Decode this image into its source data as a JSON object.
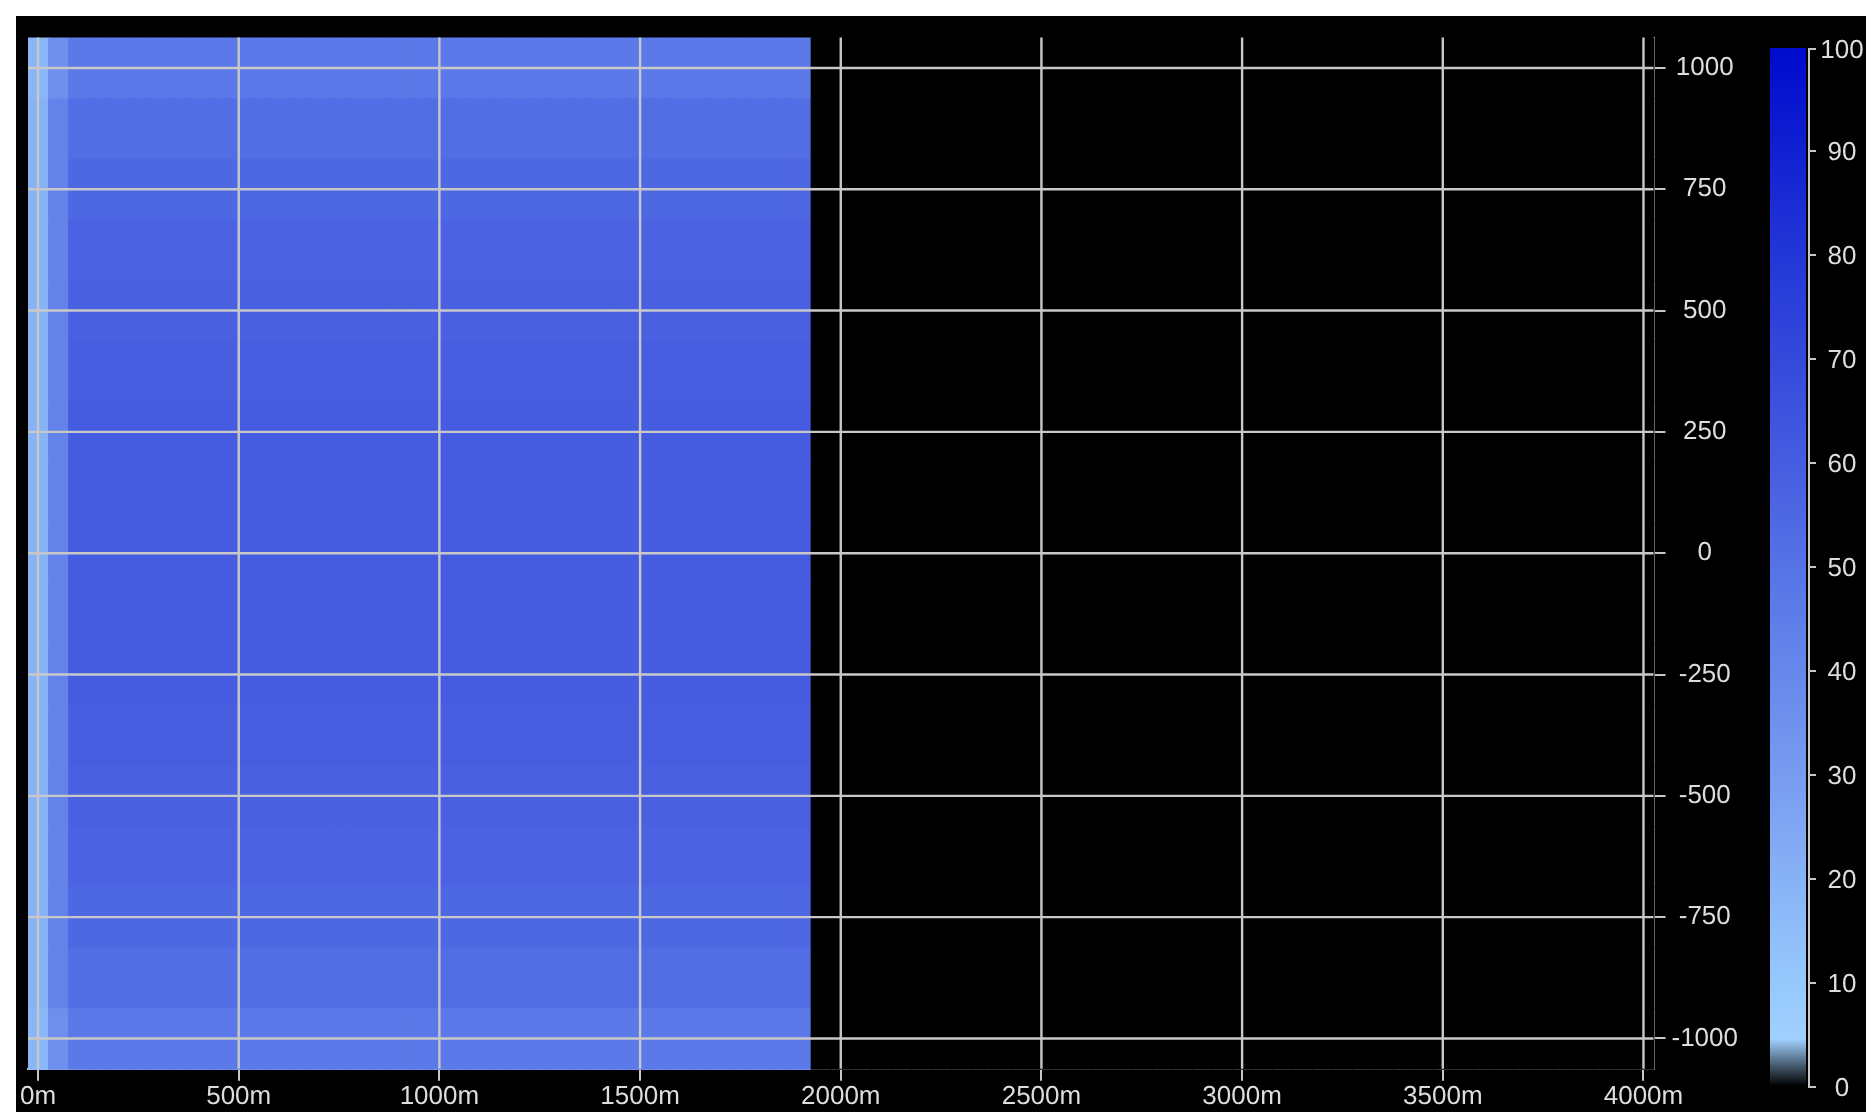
{
  "chart_data": {
    "type": "heatmap",
    "categories": [
      "0m",
      null,
      null,
      null,
      null,
      null,
      null,
      null,
      null,
      null,
      "500m",
      null,
      null,
      null,
      null,
      null,
      null,
      null,
      null,
      null,
      "1000m",
      null,
      null,
      null,
      null,
      null,
      null,
      null,
      null,
      null,
      "1500m",
      null,
      null,
      null,
      null,
      null,
      null,
      null,
      null,
      null,
      "2000m",
      null,
      null,
      null,
      null,
      null,
      null,
      null,
      null,
      null,
      "2500m",
      null,
      null,
      null,
      null,
      null,
      null,
      null,
      null,
      null,
      "3000m",
      null,
      null,
      null,
      null,
      null,
      null,
      null,
      null,
      null,
      "3500m",
      null,
      null,
      null,
      null,
      null,
      null,
      null,
      null,
      null,
      "4000m"
    ],
    "y_categories": [
      "1000",
      null,
      "750",
      null,
      "500",
      null,
      "250",
      null,
      "0",
      null,
      "-250",
      null,
      "-500",
      null,
      "-750",
      null,
      "-1000"
    ],
    "cells": [
      [
        18,
        36,
        47,
        47,
        47,
        47,
        47,
        47,
        47,
        47,
        47,
        47,
        47,
        47,
        47,
        47,
        47,
        47,
        47,
        47,
        47,
        47,
        47,
        47,
        47,
        47,
        47,
        47,
        47,
        47,
        47,
        47,
        47,
        47,
        47,
        47,
        47,
        47,
        47,
        0,
        0,
        0,
        0,
        0,
        0,
        0,
        0,
        0,
        0,
        0,
        0,
        0,
        0,
        0,
        0,
        0,
        0,
        0,
        0,
        0,
        0,
        0,
        0,
        0,
        0,
        0,
        0,
        0,
        0,
        0,
        0,
        0,
        0,
        0,
        0,
        0,
        0,
        0,
        0,
        0,
        0
      ],
      [
        20,
        42,
        52,
        52,
        52,
        52,
        52,
        52,
        52,
        52,
        52,
        52,
        52,
        52,
        52,
        52,
        52,
        52,
        52,
        52,
        52,
        52,
        52,
        52,
        52,
        52,
        52,
        52,
        52,
        52,
        52,
        52,
        52,
        52,
        52,
        52,
        52,
        52,
        52,
        0,
        0,
        0,
        0,
        0,
        0,
        0,
        0,
        0,
        0,
        0,
        0,
        0,
        0,
        0,
        0,
        0,
        0,
        0,
        0,
        0,
        0,
        0,
        0,
        0,
        0,
        0,
        0,
        0,
        0,
        0,
        0,
        0,
        0,
        0,
        0,
        0,
        0,
        0,
        0,
        0,
        0
      ],
      [
        20,
        42,
        55,
        55,
        55,
        55,
        55,
        55,
        55,
        55,
        55,
        55,
        55,
        55,
        55,
        55,
        55,
        55,
        55,
        55,
        55,
        55,
        55,
        55,
        55,
        55,
        55,
        55,
        55,
        55,
        55,
        55,
        55,
        55,
        55,
        55,
        55,
        55,
        55,
        0,
        0,
        0,
        0,
        0,
        0,
        0,
        0,
        0,
        0,
        0,
        0,
        0,
        0,
        0,
        0,
        0,
        0,
        0,
        0,
        0,
        0,
        0,
        0,
        0,
        0,
        0,
        0,
        0,
        0,
        0,
        0,
        0,
        0,
        0,
        0,
        0,
        0,
        0,
        0,
        0,
        0
      ],
      [
        20,
        42,
        57,
        57,
        57,
        57,
        57,
        57,
        57,
        57,
        57,
        57,
        57,
        57,
        57,
        57,
        57,
        57,
        57,
        57,
        57,
        57,
        57,
        57,
        57,
        57,
        57,
        57,
        57,
        57,
        57,
        57,
        57,
        57,
        57,
        57,
        57,
        57,
        57,
        0,
        0,
        0,
        0,
        0,
        0,
        0,
        0,
        0,
        0,
        0,
        0,
        0,
        0,
        0,
        0,
        0,
        0,
        0,
        0,
        0,
        0,
        0,
        0,
        0,
        0,
        0,
        0,
        0,
        0,
        0,
        0,
        0,
        0,
        0,
        0,
        0,
        0,
        0,
        0,
        0,
        0
      ],
      [
        20,
        42,
        58,
        58,
        58,
        58,
        58,
        58,
        58,
        58,
        58,
        58,
        58,
        58,
        58,
        58,
        58,
        58,
        58,
        58,
        58,
        58,
        58,
        58,
        58,
        58,
        58,
        58,
        58,
        58,
        58,
        58,
        58,
        58,
        58,
        58,
        58,
        58,
        58,
        0,
        0,
        0,
        0,
        0,
        0,
        0,
        0,
        0,
        0,
        0,
        0,
        0,
        0,
        0,
        0,
        0,
        0,
        0,
        0,
        0,
        0,
        0,
        0,
        0,
        0,
        0,
        0,
        0,
        0,
        0,
        0,
        0,
        0,
        0,
        0,
        0,
        0,
        0,
        0,
        0,
        0
      ],
      [
        20,
        42,
        59,
        59,
        59,
        59,
        59,
        59,
        59,
        59,
        59,
        59,
        59,
        59,
        59,
        59,
        59,
        59,
        59,
        59,
        59,
        59,
        59,
        59,
        59,
        59,
        59,
        59,
        59,
        59,
        59,
        59,
        59,
        59,
        59,
        59,
        59,
        59,
        59,
        0,
        0,
        0,
        0,
        0,
        0,
        0,
        0,
        0,
        0,
        0,
        0,
        0,
        0,
        0,
        0,
        0,
        0,
        0,
        0,
        0,
        0,
        0,
        0,
        0,
        0,
        0,
        0,
        0,
        0,
        0,
        0,
        0,
        0,
        0,
        0,
        0,
        0,
        0,
        0,
        0,
        0
      ],
      [
        20,
        42,
        60,
        60,
        60,
        60,
        60,
        60,
        60,
        60,
        60,
        60,
        60,
        60,
        60,
        60,
        60,
        60,
        60,
        60,
        60,
        60,
        60,
        60,
        60,
        60,
        60,
        60,
        60,
        60,
        60,
        60,
        60,
        60,
        60,
        60,
        60,
        60,
        60,
        0,
        0,
        0,
        0,
        0,
        0,
        0,
        0,
        0,
        0,
        0,
        0,
        0,
        0,
        0,
        0,
        0,
        0,
        0,
        0,
        0,
        0,
        0,
        0,
        0,
        0,
        0,
        0,
        0,
        0,
        0,
        0,
        0,
        0,
        0,
        0,
        0,
        0,
        0,
        0,
        0,
        0
      ],
      [
        20,
        42,
        60,
        60,
        60,
        60,
        60,
        60,
        60,
        60,
        60,
        60,
        60,
        60,
        60,
        60,
        60,
        60,
        60,
        60,
        60,
        60,
        60,
        60,
        60,
        60,
        60,
        60,
        60,
        60,
        60,
        60,
        60,
        60,
        60,
        60,
        60,
        60,
        60,
        0,
        0,
        0,
        0,
        0,
        0,
        0,
        0,
        0,
        0,
        0,
        0,
        0,
        0,
        0,
        0,
        0,
        0,
        0,
        0,
        0,
        0,
        0,
        0,
        0,
        0,
        0,
        0,
        0,
        0,
        0,
        0,
        0,
        0,
        0,
        0,
        0,
        0,
        0,
        0,
        0,
        0
      ],
      [
        20,
        42,
        60,
        60,
        60,
        60,
        60,
        60,
        60,
        60,
        60,
        60,
        60,
        60,
        60,
        60,
        60,
        60,
        60,
        60,
        60,
        60,
        60,
        60,
        60,
        60,
        60,
        60,
        60,
        60,
        60,
        60,
        60,
        60,
        60,
        60,
        60,
        60,
        60,
        0,
        0,
        0,
        0,
        0,
        0,
        0,
        0,
        0,
        0,
        0,
        0,
        0,
        0,
        0,
        0,
        0,
        0,
        0,
        0,
        0,
        0,
        0,
        0,
        0,
        0,
        0,
        0,
        0,
        0,
        0,
        0,
        0,
        0,
        0,
        0,
        0,
        0,
        0,
        0,
        0,
        0
      ],
      [
        20,
        42,
        60,
        60,
        60,
        60,
        60,
        60,
        60,
        60,
        60,
        60,
        60,
        60,
        60,
        60,
        60,
        60,
        60,
        60,
        60,
        60,
        60,
        60,
        60,
        60,
        60,
        60,
        60,
        60,
        60,
        60,
        60,
        60,
        60,
        60,
        60,
        60,
        60,
        0,
        0,
        0,
        0,
        0,
        0,
        0,
        0,
        0,
        0,
        0,
        0,
        0,
        0,
        0,
        0,
        0,
        0,
        0,
        0,
        0,
        0,
        0,
        0,
        0,
        0,
        0,
        0,
        0,
        0,
        0,
        0,
        0,
        0,
        0,
        0,
        0,
        0,
        0,
        0,
        0,
        0
      ],
      [
        20,
        42,
        60,
        60,
        60,
        60,
        60,
        60,
        60,
        60,
        60,
        60,
        60,
        60,
        60,
        60,
        60,
        60,
        60,
        60,
        60,
        60,
        60,
        60,
        60,
        60,
        60,
        60,
        60,
        60,
        60,
        60,
        60,
        60,
        60,
        60,
        60,
        60,
        60,
        0,
        0,
        0,
        0,
        0,
        0,
        0,
        0,
        0,
        0,
        0,
        0,
        0,
        0,
        0,
        0,
        0,
        0,
        0,
        0,
        0,
        0,
        0,
        0,
        0,
        0,
        0,
        0,
        0,
        0,
        0,
        0,
        0,
        0,
        0,
        0,
        0,
        0,
        0,
        0,
        0,
        0
      ],
      [
        20,
        42,
        59,
        59,
        59,
        59,
        59,
        59,
        59,
        59,
        59,
        59,
        59,
        59,
        59,
        59,
        59,
        59,
        59,
        59,
        59,
        59,
        59,
        59,
        59,
        59,
        59,
        59,
        59,
        59,
        59,
        59,
        59,
        59,
        59,
        59,
        59,
        59,
        59,
        0,
        0,
        0,
        0,
        0,
        0,
        0,
        0,
        0,
        0,
        0,
        0,
        0,
        0,
        0,
        0,
        0,
        0,
        0,
        0,
        0,
        0,
        0,
        0,
        0,
        0,
        0,
        0,
        0,
        0,
        0,
        0,
        0,
        0,
        0,
        0,
        0,
        0,
        0,
        0,
        0,
        0
      ],
      [
        20,
        42,
        58,
        58,
        58,
        58,
        58,
        58,
        58,
        58,
        58,
        58,
        58,
        58,
        58,
        58,
        58,
        58,
        58,
        58,
        58,
        58,
        58,
        58,
        58,
        58,
        58,
        58,
        58,
        58,
        58,
        58,
        58,
        58,
        58,
        58,
        58,
        58,
        58,
        0,
        0,
        0,
        0,
        0,
        0,
        0,
        0,
        0,
        0,
        0,
        0,
        0,
        0,
        0,
        0,
        0,
        0,
        0,
        0,
        0,
        0,
        0,
        0,
        0,
        0,
        0,
        0,
        0,
        0,
        0,
        0,
        0,
        0,
        0,
        0,
        0,
        0,
        0,
        0,
        0,
        0
      ],
      [
        20,
        42,
        57,
        57,
        57,
        57,
        57,
        57,
        57,
        57,
        57,
        57,
        57,
        57,
        57,
        57,
        57,
        57,
        57,
        57,
        57,
        57,
        57,
        57,
        57,
        57,
        57,
        57,
        57,
        57,
        57,
        57,
        57,
        57,
        57,
        57,
        57,
        57,
        57,
        0,
        0,
        0,
        0,
        0,
        0,
        0,
        0,
        0,
        0,
        0,
        0,
        0,
        0,
        0,
        0,
        0,
        0,
        0,
        0,
        0,
        0,
        0,
        0,
        0,
        0,
        0,
        0,
        0,
        0,
        0,
        0,
        0,
        0,
        0,
        0,
        0,
        0,
        0,
        0,
        0,
        0
      ],
      [
        20,
        42,
        55,
        55,
        55,
        55,
        55,
        55,
        55,
        55,
        55,
        55,
        55,
        55,
        55,
        55,
        55,
        55,
        55,
        55,
        55,
        55,
        55,
        55,
        55,
        55,
        55,
        55,
        55,
        55,
        55,
        55,
        55,
        55,
        55,
        55,
        55,
        55,
        55,
        0,
        0,
        0,
        0,
        0,
        0,
        0,
        0,
        0,
        0,
        0,
        0,
        0,
        0,
        0,
        0,
        0,
        0,
        0,
        0,
        0,
        0,
        0,
        0,
        0,
        0,
        0,
        0,
        0,
        0,
        0,
        0,
        0,
        0,
        0,
        0,
        0,
        0,
        0,
        0,
        0,
        0
      ],
      [
        20,
        42,
        52,
        52,
        52,
        52,
        52,
        52,
        52,
        52,
        52,
        52,
        52,
        52,
        52,
        52,
        52,
        52,
        52,
        52,
        52,
        52,
        52,
        52,
        52,
        52,
        52,
        52,
        52,
        52,
        52,
        52,
        52,
        52,
        52,
        52,
        52,
        52,
        52,
        0,
        0,
        0,
        0,
        0,
        0,
        0,
        0,
        0,
        0,
        0,
        0,
        0,
        0,
        0,
        0,
        0,
        0,
        0,
        0,
        0,
        0,
        0,
        0,
        0,
        0,
        0,
        0,
        0,
        0,
        0,
        0,
        0,
        0,
        0,
        0,
        0,
        0,
        0,
        0,
        0,
        0
      ],
      [
        18,
        36,
        47,
        47,
        47,
        47,
        47,
        47,
        47,
        47,
        47,
        47,
        47,
        47,
        47,
        47,
        47,
        47,
        47,
        47,
        47,
        47,
        47,
        47,
        47,
        47,
        47,
        47,
        47,
        47,
        47,
        47,
        47,
        47,
        47,
        47,
        47,
        47,
        47,
        0,
        0,
        0,
        0,
        0,
        0,
        0,
        0,
        0,
        0,
        0,
        0,
        0,
        0,
        0,
        0,
        0,
        0,
        0,
        0,
        0,
        0,
        0,
        0,
        0,
        0,
        0,
        0,
        0,
        0,
        0,
        0,
        0,
        0,
        0,
        0,
        0,
        0,
        0,
        0,
        0,
        0
      ]
    ],
    "clim": [
      0,
      100
    ],
    "cticks": [
      0,
      10,
      20,
      30,
      40,
      50,
      60,
      70,
      80,
      90,
      100
    ],
    "grid": true
  }
}
